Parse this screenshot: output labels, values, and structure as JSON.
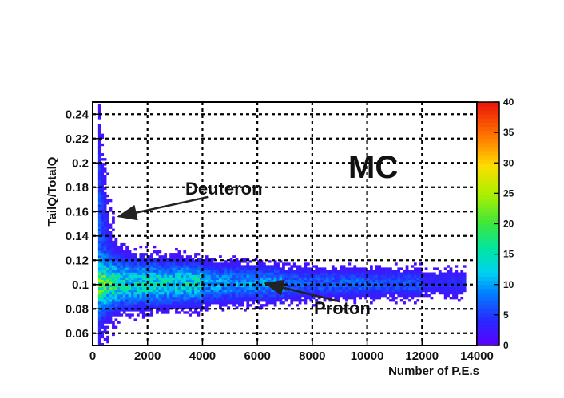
{
  "chart_data": {
    "type": "heatmap",
    "xlabel": "Number of P.E.s",
    "ylabel": "TailQ/TotalQ",
    "xlim": [
      0,
      14000
    ],
    "ylim": [
      0.05,
      0.25
    ],
    "xticks": [
      0,
      2000,
      4000,
      6000,
      8000,
      10000,
      12000,
      14000
    ],
    "yticks": [
      0.06,
      0.08,
      0.1,
      0.12,
      0.14,
      0.16,
      0.18,
      0.2,
      0.22,
      0.24
    ],
    "x_tick_labels": [
      "0",
      "2000",
      "4000",
      "6000",
      "8000",
      "10000",
      "12000",
      "14000"
    ],
    "y_tick_labels": [
      "0.06",
      "0.08",
      "0.1",
      "0.12",
      "0.14",
      "0.16",
      "0.18",
      "0.2",
      "0.22",
      "0.24"
    ],
    "grid": true,
    "colorbar": {
      "range": [
        0,
        40
      ],
      "ticks": [
        0,
        5,
        10,
        15,
        20,
        25,
        30,
        35,
        40
      ],
      "tick_labels": [
        "0",
        "5",
        "10",
        "15",
        "20",
        "25",
        "30",
        "35",
        "40"
      ]
    },
    "bands": [
      {
        "name": "Proton",
        "x_range": [
          200,
          13600
        ],
        "center": 0.101,
        "spread": [
          0.012,
          0.007
        ],
        "peak_counts": 20
      },
      {
        "name": "Deuteron",
        "x_range": [
          200,
          2500
        ],
        "center": 0.12,
        "spread": [
          0.13,
          0.06
        ],
        "peak_counts": 6
      }
    ],
    "annotations": [
      {
        "text": "MC",
        "x": 10500,
        "y": 0.195
      },
      {
        "text": "Deuteron",
        "x": 4200,
        "y": 0.172,
        "arrow_to": [
          950,
          0.156
        ]
      },
      {
        "text": "Proton",
        "x": 9000,
        "y": 0.086,
        "arrow_to": [
          6300,
          0.101
        ]
      }
    ]
  }
}
